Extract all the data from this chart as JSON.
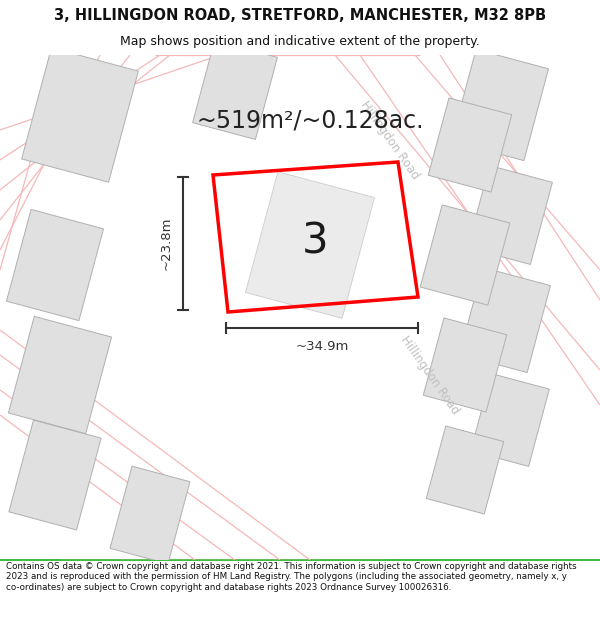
{
  "title_line1": "3, HILLINGDON ROAD, STRETFORD, MANCHESTER, M32 8PB",
  "title_line2": "Map shows position and indicative extent of the property.",
  "area_text": "~519m²/~0.128ac.",
  "label_number": "3",
  "dim_width": "~34.9m",
  "dim_height": "~23.8m",
  "footer_text": "Contains OS data © Crown copyright and database right 2021. This information is subject to Crown copyright and database rights 2023 and is reproduced with the permission of HM Land Registry. The polygons (including the associated geometry, namely x, y co-ordinates) are subject to Crown copyright and database rights 2023 Ordnance Survey 100026316.",
  "map_bg": "#ffffff",
  "title_bg": "#ffffff",
  "footer_bg": "#ffffff",
  "plot_color": "#ff0000",
  "building_fill": "#e0e0e0",
  "building_edge": "#b0b0b0",
  "road_line_color": "#f5b8b8",
  "road_text_color": "#c0c0c0",
  "dim_color": "#333333",
  "area_text_color": "#222222",
  "title_color": "#111111",
  "footer_color": "#111111",
  "green_line_color": "#44bb44"
}
